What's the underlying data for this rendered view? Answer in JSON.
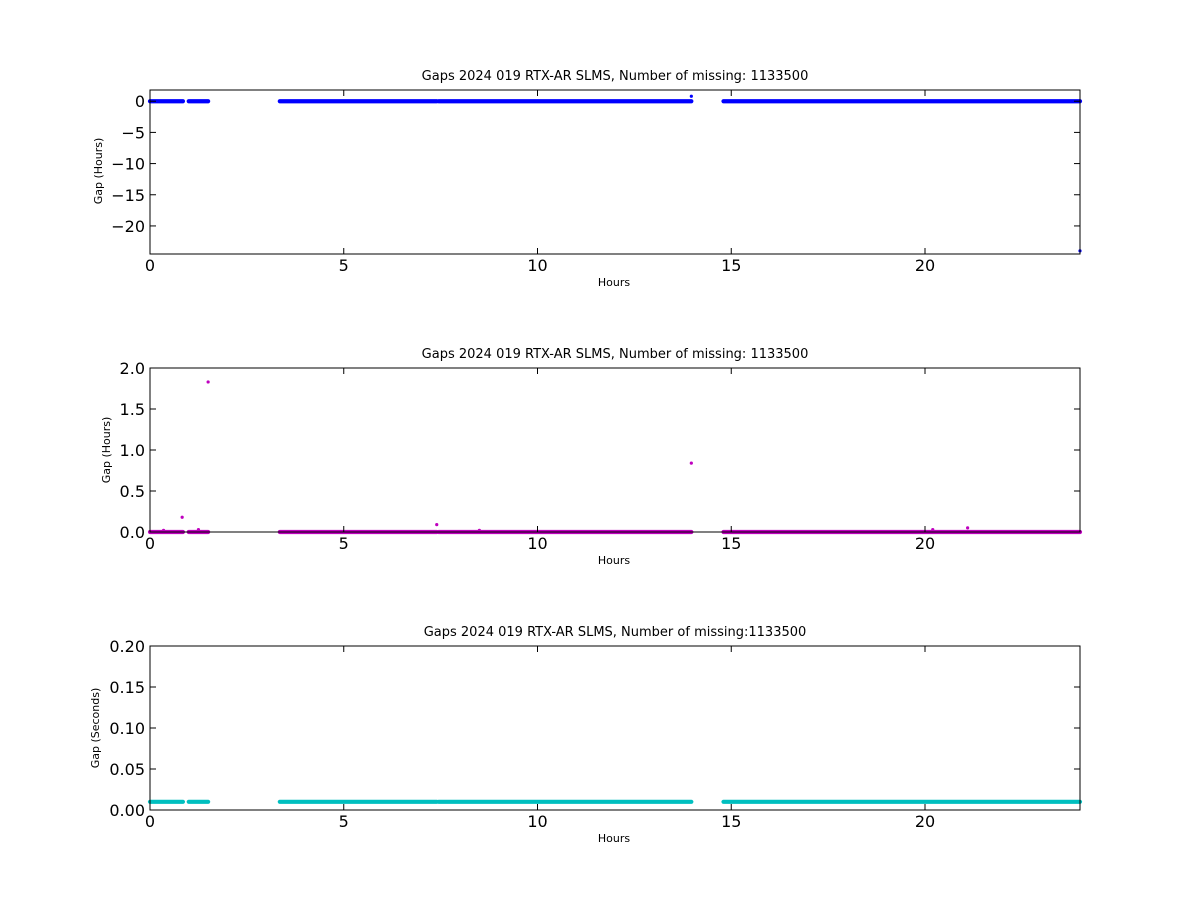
{
  "chart_data": [
    {
      "type": "scatter",
      "title": "Gaps 2024 019 RTX-AR  SLMS, Number of missing: 1133500",
      "xlabel": "Hours",
      "ylabel": "Gap (Hours)",
      "xlim": [
        0,
        24
      ],
      "ylim": [
        -24.5,
        1.8
      ],
      "xticks": [
        0,
        5,
        10,
        15,
        20
      ],
      "yticks": [
        0,
        -5,
        -10,
        -15,
        -20
      ],
      "ytick_labels": [
        "0",
        "−5",
        "−10",
        "−15",
        "−20"
      ],
      "grid": false,
      "color": "#0000ff",
      "marker_size": 1.6,
      "segments": [
        {
          "x_start": 0.0,
          "x_end": 0.85,
          "y": 0.0
        },
        {
          "x_start": 1.0,
          "x_end": 1.5,
          "y": 0.0
        },
        {
          "x_start": 3.35,
          "x_end": 7.4,
          "y": 0.0
        },
        {
          "x_start": 7.45,
          "x_end": 13.97,
          "y": 0.0
        },
        {
          "x_start": 14.8,
          "x_end": 24.0,
          "y": 0.0
        }
      ],
      "points": [
        {
          "x": 13.97,
          "y": 0.8
        },
        {
          "x": 24.0,
          "y": -24.0
        }
      ]
    },
    {
      "type": "scatter",
      "title": "Gaps 2024 019 RTX-AR  SLMS, Number of missing: 1133500",
      "xlabel": "Hours",
      "ylabel": "Gap (Hours)",
      "xlim": [
        0,
        24
      ],
      "ylim": [
        0,
        2.0
      ],
      "xticks": [
        0,
        5,
        10,
        15,
        20
      ],
      "yticks": [
        0.0,
        0.5,
        1.0,
        1.5,
        2.0
      ],
      "ytick_labels": [
        "0.0",
        "0.5",
        "1.0",
        "1.5",
        "2.0"
      ],
      "grid": false,
      "color": "#bf00bf",
      "marker_size": 1.6,
      "segments": [
        {
          "x_start": 0.0,
          "x_end": 0.85,
          "y": 0.0
        },
        {
          "x_start": 1.0,
          "x_end": 1.5,
          "y": 0.0
        },
        {
          "x_start": 3.35,
          "x_end": 7.4,
          "y": 0.0
        },
        {
          "x_start": 7.45,
          "x_end": 13.97,
          "y": 0.0
        },
        {
          "x_start": 14.8,
          "x_end": 24.0,
          "y": 0.0
        }
      ],
      "points": [
        {
          "x": 0.35,
          "y": 0.02
        },
        {
          "x": 0.83,
          "y": 0.18
        },
        {
          "x": 1.25,
          "y": 0.03
        },
        {
          "x": 1.5,
          "y": 1.83
        },
        {
          "x": 7.4,
          "y": 0.09
        },
        {
          "x": 8.5,
          "y": 0.02
        },
        {
          "x": 13.97,
          "y": 0.84
        },
        {
          "x": 20.2,
          "y": 0.03
        },
        {
          "x": 21.1,
          "y": 0.05
        }
      ]
    },
    {
      "type": "scatter",
      "title": "Gaps 2024 019 RTX-AR  SLMS, Number of missing:1133500",
      "xlabel": "Hours",
      "ylabel": "Gap (Seconds)",
      "xlim": [
        0,
        24
      ],
      "ylim": [
        0,
        0.2
      ],
      "xticks": [
        0,
        5,
        10,
        15,
        20
      ],
      "yticks": [
        0.0,
        0.05,
        0.1,
        0.15,
        0.2
      ],
      "ytick_labels": [
        "0.00",
        "0.05",
        "0.10",
        "0.15",
        "0.20"
      ],
      "grid": false,
      "color": "#00bfbf",
      "marker_size": 1.6,
      "segments": [
        {
          "x_start": 0.0,
          "x_end": 0.85,
          "y": 0.01
        },
        {
          "x_start": 1.0,
          "x_end": 1.5,
          "y": 0.01
        },
        {
          "x_start": 3.35,
          "x_end": 7.4,
          "y": 0.01
        },
        {
          "x_start": 7.45,
          "x_end": 13.97,
          "y": 0.01
        },
        {
          "x_start": 14.8,
          "x_end": 24.0,
          "y": 0.01
        }
      ],
      "points": []
    }
  ]
}
